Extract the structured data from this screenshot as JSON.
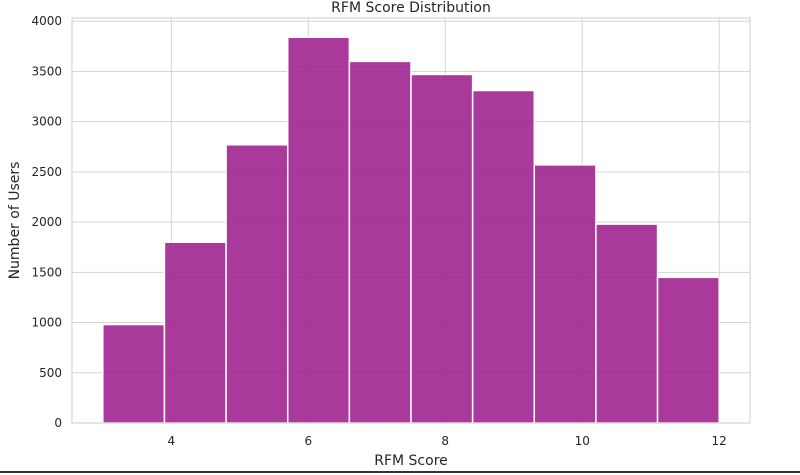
{
  "chart_data": {
    "type": "bar",
    "title": "RFM Score Distribution",
    "xlabel": "RFM Score",
    "ylabel": "Number of Users",
    "bins": [
      {
        "x0": 3.0,
        "x1": 3.9,
        "value": 980
      },
      {
        "x0": 3.9,
        "x1": 4.8,
        "value": 1800
      },
      {
        "x0": 4.8,
        "x1": 5.7,
        "value": 2770
      },
      {
        "x0": 5.7,
        "x1": 6.6,
        "value": 3840
      },
      {
        "x0": 6.6,
        "x1": 7.5,
        "value": 3600
      },
      {
        "x0": 7.5,
        "x1": 8.4,
        "value": 3470
      },
      {
        "x0": 8.4,
        "x1": 9.3,
        "value": 3310
      },
      {
        "x0": 9.3,
        "x1": 10.2,
        "value": 2570
      },
      {
        "x0": 10.2,
        "x1": 11.1,
        "value": 1980
      },
      {
        "x0": 11.1,
        "x1": 12.0,
        "value": 1450
      }
    ],
    "xticks": [
      4,
      6,
      8,
      10,
      12
    ],
    "yticks": [
      0,
      500,
      1000,
      1500,
      2000,
      2500,
      3000,
      3500,
      4000
    ],
    "xlim": [
      2.55,
      12.45
    ],
    "ylim": [
      0,
      4032
    ],
    "grid": true,
    "bar_color": "#a0238f",
    "edge_color": "#ffffff"
  }
}
